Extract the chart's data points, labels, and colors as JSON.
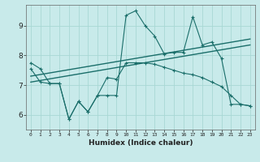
{
  "xlabel": "Humidex (Indice chaleur)",
  "bg_color": "#c8eaea",
  "line_color": "#1a6e6a",
  "grid_color": "#a8d8d4",
  "xlim": [
    -0.5,
    23.5
  ],
  "ylim": [
    5.5,
    9.7
  ],
  "xticks": [
    0,
    1,
    2,
    3,
    4,
    5,
    6,
    7,
    8,
    9,
    10,
    11,
    12,
    13,
    14,
    15,
    16,
    17,
    18,
    19,
    20,
    21,
    22,
    23
  ],
  "yticks": [
    6,
    7,
    8,
    9
  ],
  "series1_x": [
    0,
    1,
    2,
    3,
    4,
    5,
    6,
    7,
    8,
    9,
    10,
    11,
    12,
    13,
    14,
    15,
    16,
    17,
    18,
    19,
    20,
    21,
    22,
    23
  ],
  "series1_y": [
    7.75,
    7.55,
    7.05,
    7.05,
    5.85,
    6.45,
    6.1,
    6.65,
    6.65,
    6.65,
    9.35,
    9.5,
    9.0,
    8.65,
    8.05,
    8.1,
    8.1,
    9.3,
    8.35,
    8.45,
    7.9,
    6.35,
    6.35,
    6.3
  ],
  "series2_x": [
    0,
    23
  ],
  "series2_y": [
    7.3,
    8.55
  ],
  "series3_x": [
    0,
    23
  ],
  "series3_y": [
    7.1,
    8.35
  ],
  "series4_x": [
    0,
    1,
    2,
    3,
    4,
    5,
    6,
    7,
    8,
    9,
    10,
    11,
    12,
    13,
    14,
    15,
    16,
    17,
    18,
    19,
    20,
    21,
    22,
    23
  ],
  "series4_y": [
    7.55,
    7.1,
    7.05,
    7.05,
    5.85,
    6.45,
    6.1,
    6.65,
    7.25,
    7.2,
    7.75,
    7.75,
    7.75,
    7.7,
    7.6,
    7.5,
    7.4,
    7.35,
    7.25,
    7.1,
    6.95,
    6.65,
    6.35,
    6.3
  ]
}
